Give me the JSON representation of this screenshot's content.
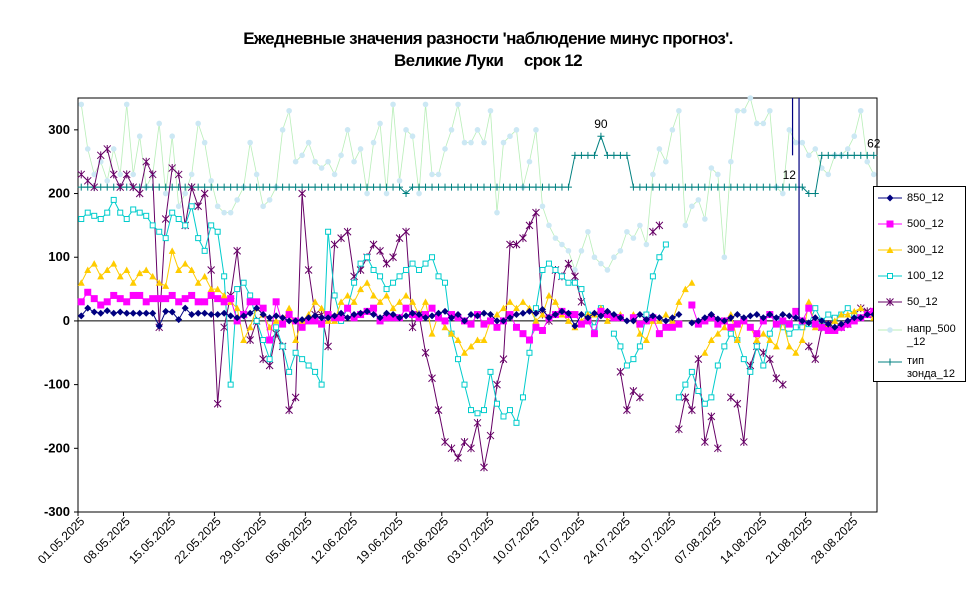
{
  "chart_data": {
    "type": "line",
    "title_lines": [
      "Ежедневные значения разности 'наблюдение минус прогноз'.",
      "Великие Луки     срок 12"
    ],
    "xlabel": "",
    "ylabel": "",
    "ylim": [
      -300,
      350
    ],
    "yticks": [
      "300",
      "200",
      "100",
      "0",
      "-100",
      "-200",
      "-300"
    ],
    "x_tick_labels": [
      "01.05.2025",
      "08.05.2025",
      "15.05.2025",
      "22.05.2025",
      "29.05.2025",
      "05.06.2025",
      "12.06.2025",
      "19.06.2025",
      "26.06.2025",
      "03.07.2025",
      "10.07.2025",
      "17.07.2025",
      "24.07.2025",
      "31.07.2025",
      "07.08.2025",
      "14.08.2025",
      "21.08.2025",
      "28.08.2025"
    ],
    "n_days": 123,
    "legend_position": "right",
    "annotations": [
      {
        "text": "90",
        "day": 80,
        "y": 290
      },
      {
        "text": "12",
        "day": 109,
        "y": 210
      },
      {
        "text": "62",
        "day": 122,
        "y": 260
      }
    ],
    "series": [
      {
        "name": "850_12",
        "color": "#000080",
        "marker": "diamond",
        "values": [
          8,
          20,
          14,
          12,
          16,
          12,
          14,
          12,
          12,
          12,
          12,
          12,
          -8,
          15,
          14,
          2,
          20,
          10,
          12,
          12,
          10,
          10,
          12,
          8,
          5,
          8,
          12,
          20,
          10,
          5,
          8,
          5,
          0,
          0,
          2,
          5,
          8,
          5,
          5,
          8,
          12,
          5,
          10,
          12,
          15,
          10,
          5,
          12,
          10,
          5,
          8,
          12,
          10,
          5,
          8,
          12,
          15,
          5,
          10,
          0,
          10,
          8,
          12,
          10,
          0,
          0,
          5,
          10,
          12,
          15,
          12,
          18,
          5,
          10,
          15,
          12,
          -8,
          10,
          5,
          12,
          8,
          15,
          10,
          5,
          0,
          0,
          10,
          2,
          8,
          5,
          0,
          5,
          10,
          null,
          -3,
          0,
          5,
          10,
          3,
          0,
          5,
          10,
          5,
          8,
          10,
          5,
          10,
          5,
          10,
          8,
          5,
          0,
          -3,
          5,
          0,
          -5,
          -10,
          -5,
          0,
          5,
          5,
          10,
          10,
          3
        ]
      },
      {
        "name": "500_12",
        "color": "#FF00FF",
        "marker": "square",
        "values": [
          30,
          45,
          35,
          25,
          30,
          40,
          35,
          30,
          40,
          40,
          30,
          35,
          35,
          35,
          40,
          30,
          35,
          40,
          30,
          30,
          40,
          35,
          30,
          35,
          0,
          10,
          30,
          30,
          20,
          -30,
          30,
          -5,
          10,
          0,
          -10,
          0,
          0,
          -5,
          10,
          5,
          5,
          20,
          5,
          10,
          15,
          20,
          0,
          5,
          5,
          5,
          20,
          10,
          5,
          10,
          20,
          5,
          0,
          10,
          5,
          0,
          -5,
          10,
          -5,
          0,
          -10,
          0,
          10,
          -10,
          -20,
          -30,
          -10,
          -15,
          5,
          10,
          15,
          10,
          10,
          -5,
          0,
          -20,
          15,
          10,
          5,
          5,
          null,
          5,
          -5,
          0,
          5,
          -20,
          -10,
          -10,
          -5,
          null,
          25,
          -5,
          0,
          5,
          -5,
          0,
          -10,
          -5,
          0,
          -10,
          -20,
          0,
          10,
          -5,
          0,
          -5,
          15,
          0,
          20,
          -5,
          -10,
          -15,
          -15,
          -10,
          -5,
          0,
          5,
          10,
          15
        ]
      },
      {
        "name": "300_12",
        "color": "#FFCC00",
        "marker": "triangle",
        "values": [
          60,
          80,
          90,
          70,
          80,
          90,
          70,
          80,
          60,
          75,
          80,
          70,
          60,
          55,
          110,
          80,
          90,
          80,
          60,
          70,
          50,
          50,
          40,
          30,
          20,
          -30,
          -10,
          20,
          10,
          -10,
          0,
          0,
          20,
          -30,
          0,
          10,
          30,
          20,
          0,
          0,
          30,
          40,
          30,
          50,
          60,
          40,
          30,
          40,
          20,
          30,
          40,
          30,
          10,
          30,
          -20,
          10,
          -10,
          -20,
          -30,
          -50,
          -40,
          -30,
          -30,
          0,
          10,
          20,
          30,
          20,
          30,
          20,
          0,
          10,
          40,
          30,
          10,
          0,
          -10,
          0,
          10,
          10,
          20,
          0,
          10,
          10,
          null,
          10,
          -20,
          -30,
          0,
          0,
          10,
          0,
          30,
          50,
          60,
          null,
          -50,
          -30,
          -20,
          -10,
          10,
          -30,
          0,
          -10,
          -30,
          -20,
          -30,
          -40,
          0,
          -40,
          -50,
          -30,
          30,
          -10,
          -5,
          -10,
          0,
          10,
          10,
          15,
          20,
          10,
          5
        ]
      },
      {
        "name": "100_12",
        "color": "#00CCCC",
        "marker": "square-open",
        "values": [
          160,
          170,
          165,
          160,
          170,
          190,
          170,
          160,
          175,
          170,
          165,
          150,
          140,
          130,
          170,
          160,
          150,
          180,
          130,
          110,
          150,
          140,
          70,
          -100,
          50,
          60,
          40,
          0,
          -30,
          -60,
          -10,
          -40,
          -80,
          -50,
          -60,
          -70,
          -80,
          -100,
          140,
          40,
          0,
          20,
          60,
          90,
          100,
          80,
          70,
          50,
          60,
          70,
          80,
          90,
          80,
          90,
          100,
          70,
          60,
          -20,
          -60,
          -100,
          -140,
          -145,
          -140,
          -80,
          -130,
          -150,
          -140,
          -160,
          -120,
          -50,
          20,
          80,
          90,
          80,
          70,
          60,
          60,
          50,
          10,
          -10,
          20,
          null,
          -20,
          -40,
          -70,
          -60,
          -40,
          10,
          70,
          100,
          120,
          null,
          -120,
          -100,
          -80,
          -110,
          -130,
          -120,
          -70,
          -40,
          -20,
          -30,
          -60,
          -80,
          -40,
          -70,
          -20,
          0,
          -10,
          -20,
          -10,
          -10,
          -5,
          20,
          0,
          10,
          5,
          10,
          20,
          10,
          5
        ]
      },
      {
        "name": "50_12",
        "color": "#660066",
        "marker": "x",
        "values": [
          230,
          220,
          210,
          260,
          270,
          230,
          210,
          230,
          210,
          200,
          250,
          230,
          -10,
          160,
          240,
          230,
          150,
          210,
          180,
          200,
          80,
          -130,
          -10,
          40,
          110,
          10,
          -30,
          0,
          -60,
          -70,
          -20,
          -40,
          -140,
          -120,
          200,
          80,
          10,
          10,
          -40,
          120,
          130,
          140,
          70,
          80,
          100,
          120,
          110,
          90,
          100,
          130,
          140,
          -10,
          10,
          -50,
          -90,
          -140,
          -190,
          -200,
          -215,
          -190,
          -200,
          -160,
          -230,
          -180,
          -100,
          -60,
          120,
          120,
          130,
          150,
          170,
          10,
          0,
          80,
          70,
          90,
          70,
          30,
          null,
          null,
          null,
          null,
          null,
          -80,
          -140,
          -110,
          -120,
          null,
          140,
          150,
          null,
          null,
          -170,
          -120,
          -140,
          -60,
          -190,
          -150,
          -200,
          null,
          -120,
          -130,
          -190,
          -70,
          -40,
          -50,
          -60,
          -90,
          -100,
          null,
          null,
          null,
          -40,
          -60,
          -10,
          -5,
          0,
          -10,
          -5,
          10,
          20,
          15,
          10
        ]
      },
      {
        "name": "напр_500\n_12",
        "color": "#CCE8F4",
        "lineColor": "#B8EEB8",
        "marker": "dot",
        "values": [
          340,
          270,
          230,
          250,
          220,
          270,
          230,
          340,
          230,
          290,
          210,
          230,
          310,
          200,
          290,
          180,
          200,
          230,
          310,
          280,
          220,
          180,
          170,
          170,
          190,
          210,
          280,
          230,
          180,
          190,
          210,
          300,
          330,
          250,
          260,
          280,
          250,
          240,
          250,
          230,
          260,
          300,
          250,
          270,
          200,
          280,
          310,
          200,
          340,
          220,
          300,
          290,
          200,
          340,
          230,
          230,
          270,
          300,
          340,
          280,
          280,
          300,
          280,
          330,
          170,
          280,
          290,
          300,
          210,
          250,
          300,
          180,
          150,
          130,
          120,
          110,
          80,
          110,
          140,
          100,
          90,
          80,
          100,
          110,
          140,
          130,
          150,
          120,
          230,
          270,
          250,
          300,
          330,
          150,
          180,
          190,
          160,
          240,
          230,
          100,
          250,
          330,
          330,
          350,
          310,
          310,
          330,
          210,
          200,
          300,
          280,
          280,
          260,
          270,
          240,
          230,
          260,
          260,
          270,
          290,
          330,
          250,
          230
        ]
      },
      {
        "name": "тип\nзонда_12",
        "color": "#008080",
        "marker": "plus",
        "values": [
          210,
          210,
          210,
          210,
          210,
          210,
          210,
          210,
          210,
          210,
          210,
          210,
          210,
          210,
          210,
          210,
          210,
          210,
          210,
          210,
          210,
          210,
          210,
          210,
          210,
          210,
          210,
          210,
          210,
          210,
          210,
          210,
          210,
          210,
          210,
          210,
          210,
          210,
          210,
          210,
          210,
          210,
          210,
          210,
          210,
          210,
          210,
          210,
          210,
          210,
          200,
          210,
          210,
          210,
          210,
          210,
          210,
          210,
          210,
          210,
          210,
          210,
          210,
          210,
          210,
          210,
          210,
          210,
          210,
          210,
          210,
          210,
          210,
          210,
          210,
          210,
          260,
          260,
          260,
          260,
          290,
          260,
          260,
          260,
          260,
          210,
          210,
          210,
          210,
          210,
          210,
          210,
          210,
          210,
          210,
          210,
          210,
          210,
          210,
          210,
          210,
          210,
          210,
          210,
          210,
          210,
          210,
          210,
          210,
          210,
          210,
          210,
          200,
          200,
          260,
          260,
          260,
          260,
          260,
          260,
          260,
          260,
          260
        ]
      }
    ]
  }
}
